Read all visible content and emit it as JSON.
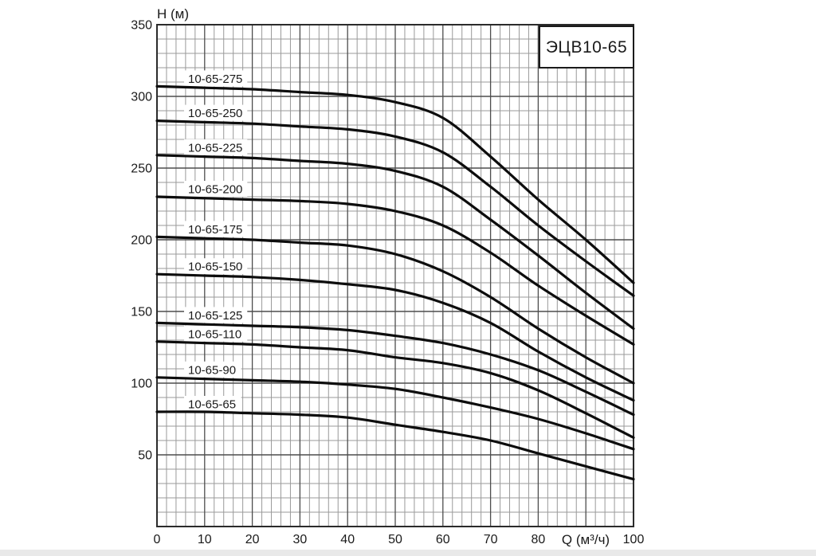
{
  "title_box": {
    "text": "ЭЦВ10-65"
  },
  "axes": {
    "y": {
      "title": "H (м)",
      "min": 0,
      "max": 350,
      "major_step": 50,
      "minor_step": 10,
      "tick_labels": [
        350,
        300,
        250,
        200,
        150,
        100,
        50
      ]
    },
    "x": {
      "title": "Q (м³/ч)",
      "min": 0,
      "max": 100,
      "major_step": 10,
      "minor_step": 2,
      "tick_labels": [
        0,
        10,
        20,
        30,
        40,
        50,
        60,
        70,
        80
      ],
      "end_tick_label": 100,
      "title_at": 90
    }
  },
  "chart_data": {
    "type": "line",
    "title": "ЭЦВ10-65",
    "xlabel": "Q (м³/ч)",
    "ylabel": "H (м)",
    "xlim": [
      0,
      100
    ],
    "ylim": [
      0,
      350
    ],
    "grid": "major+minor",
    "legend": "inline-curve-labels",
    "x": [
      0,
      10,
      20,
      30,
      40,
      50,
      60,
      70,
      80,
      90,
      100
    ],
    "series": [
      {
        "name": "10-65-275",
        "values": [
          307,
          306,
          305,
          303,
          301,
          296,
          285,
          258,
          228,
          200,
          170
        ]
      },
      {
        "name": "10-65-250",
        "values": [
          283,
          282,
          281,
          279,
          277,
          272,
          261,
          237,
          210,
          185,
          161
        ]
      },
      {
        "name": "10-65-225",
        "values": [
          259,
          258,
          257,
          255,
          253,
          248,
          237,
          214,
          189,
          163,
          138
        ]
      },
      {
        "name": "10-65-200",
        "values": [
          230,
          229,
          228,
          227,
          225,
          220,
          210,
          191,
          168,
          147,
          127
        ]
      },
      {
        "name": "10-65-175",
        "values": [
          202,
          201,
          200,
          198,
          196,
          190,
          178,
          160,
          138,
          118,
          100
        ]
      },
      {
        "name": "10-65-150",
        "values": [
          176,
          175,
          174,
          172,
          169,
          165,
          156,
          142,
          122,
          104,
          88
        ]
      },
      {
        "name": "10-65-125",
        "values": [
          142,
          141,
          140,
          139,
          137,
          133,
          128,
          120,
          109,
          94,
          78
        ]
      },
      {
        "name": "10-65-110",
        "values": [
          129,
          128,
          127,
          125,
          123,
          118,
          114,
          107,
          95,
          79,
          62
        ]
      },
      {
        "name": "10-65-90",
        "values": [
          104,
          103,
          102,
          101,
          99,
          96,
          90,
          83,
          75,
          65,
          54
        ]
      },
      {
        "name": "10-65-65",
        "values": [
          80,
          80,
          79,
          78,
          76,
          71,
          66,
          60,
          51,
          42,
          33
        ]
      }
    ]
  },
  "colors": {
    "background": "#ffffff",
    "curve": "#0d0d0d",
    "grid_minor": "#9a9a9a",
    "grid_major": "#4d4d4d",
    "plot_border": "#2b2b2b",
    "text": "#1a1a1a",
    "bottom_strip": "#e9e9e9"
  }
}
